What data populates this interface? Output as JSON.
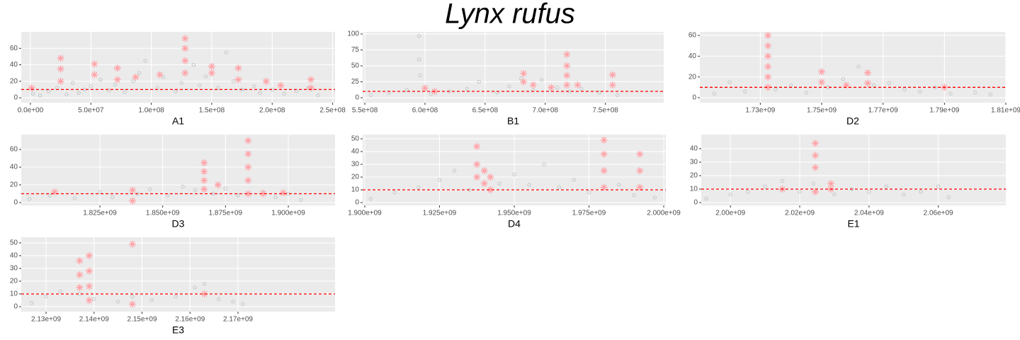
{
  "title": "Lynx rufus",
  "chart_data": [
    {
      "type": "scatter",
      "xlabel": "A1",
      "xlim": [
        -7600000,
        252000000
      ],
      "ylim": [
        -6,
        80
      ],
      "xticks": [
        {
          "value": 0,
          "label": "0.0e+00"
        },
        {
          "value": 50000000,
          "label": "5.0e+07"
        },
        {
          "value": 100000000,
          "label": "1.0e+08"
        },
        {
          "value": 150000000,
          "label": "1.5e+08"
        },
        {
          "value": 200000000,
          "label": "2.0e+08"
        },
        {
          "value": 250000000,
          "label": "2.5e+08"
        }
      ],
      "yticks": [
        0,
        20,
        40,
        60
      ],
      "hline": 10,
      "hline_color": "#ff0000",
      "grid": true,
      "series": [
        {
          "color": "#c3c8c8",
          "marker": "circle",
          "x": [
            2000000.0,
            8000000.0,
            15000000.0,
            22000000.0,
            30000000.0,
            35000000.0,
            40000000.0,
            45000000.0,
            50000000.0,
            58000000.0,
            65000000.0,
            70000000.0,
            78000000.0,
            85000000.0,
            90000000.0,
            95000000.0,
            105000000.0,
            110000000.0,
            120000000.0,
            125000000.0,
            135000000.0,
            140000000.0,
            145000000.0,
            155000000.0,
            162000000.0,
            168000000.0,
            175000000.0,
            185000000.0,
            190000000.0,
            200000000.0,
            210000000.0,
            220000000.0,
            230000000.0,
            238000000.0
          ],
          "values": [
            5,
            3,
            8,
            12,
            4,
            18,
            6,
            10,
            14,
            22,
            9,
            16,
            7,
            20,
            30,
            45,
            12,
            25,
            8,
            18,
            40,
            15,
            26,
            12,
            55,
            20,
            10,
            14,
            6,
            10,
            5,
            8,
            12,
            3
          ]
        },
        {
          "color": "#ffa3a8",
          "marker": "asterisk",
          "x": [
            1000000.0,
            25000000.0,
            25000000.0,
            25000000.0,
            53000000.0,
            53000000.0,
            72000000.0,
            72000000.0,
            87000000.0,
            107000000.0,
            128000000.0,
            128000000.0,
            128000000.0,
            128000000.0,
            150000000.0,
            150000000.0,
            172000000.0,
            172000000.0,
            195000000.0,
            207000000.0,
            232000000.0,
            232000000.0
          ],
          "values": [
            12,
            48,
            35,
            20,
            41,
            28,
            36,
            22,
            25,
            28,
            72,
            60,
            45,
            30,
            38,
            30,
            36,
            22,
            20,
            15,
            22,
            12
          ]
        }
      ]
    },
    {
      "type": "scatter",
      "xlabel": "B1",
      "xlim": [
        548200000,
        798500000
      ],
      "ylim": [
        -7.8,
        103.3
      ],
      "xticks": [
        {
          "value": 550000000,
          "label": "5.5e+08"
        },
        {
          "value": 600000000,
          "label": "6.0e+08"
        },
        {
          "value": 650000000,
          "label": "6.5e+08"
        },
        {
          "value": 700000000,
          "label": "7.0e+08"
        },
        {
          "value": 750000000,
          "label": "7.5e+08"
        }
      ],
      "yticks": [
        0,
        25,
        50,
        75,
        100
      ],
      "hline": 10,
      "hline_color": "#ff0000",
      "grid": true,
      "series": [
        {
          "color": "#c3c8c8",
          "marker": "circle",
          "x": [
            555000000.0,
            570000000.0,
            585000000.0,
            595000000.0,
            595000000.0,
            596000000.0,
            605000000.0,
            620000000.0,
            635000000.0,
            645000000.0,
            660000000.0,
            670000000.0,
            680000000.0,
            690000000.0,
            697000000.0,
            710000000.0,
            720000000.0,
            730000000.0,
            745000000.0,
            760000000.0
          ],
          "values": [
            4,
            8,
            12,
            97,
            60,
            35,
            6,
            10,
            14,
            25,
            8,
            18,
            30,
            12,
            28,
            16,
            10,
            14,
            8,
            4
          ]
        },
        {
          "color": "#ffa3a8",
          "marker": "asterisk",
          "x": [
            600000000.0,
            608000000.0,
            682000000.0,
            682000000.0,
            690000000.0,
            705000000.0,
            718000000.0,
            718000000.0,
            718000000.0,
            718000000.0,
            727000000.0,
            756000000.0,
            756000000.0
          ],
          "values": [
            15,
            10,
            38,
            25,
            20,
            16,
            68,
            50,
            35,
            20,
            20,
            36,
            20
          ]
        }
      ]
    },
    {
      "type": "scatter",
      "xlabel": "D2",
      "xlim": [
        1710300000,
        1810000000
      ],
      "ylim": [
        -4.8,
        63.4
      ],
      "xticks": [
        {
          "value": 1730000000,
          "label": "1.73e+09"
        },
        {
          "value": 1750000000,
          "label": "1.75e+09"
        },
        {
          "value": 1770000000,
          "label": "1.77e+09"
        },
        {
          "value": 1790000000,
          "label": "1.79e+09"
        },
        {
          "value": 1810000000,
          "label": "1.81e+09"
        }
      ],
      "yticks": [
        0,
        20,
        40,
        60
      ],
      "hline": 10,
      "hline_color": "#ff0000",
      "grid": true,
      "series": [
        {
          "color": "#c3c8c8",
          "marker": "circle",
          "x": [
            1715000000.0,
            1720000000.0,
            1725000000.0,
            1735000000.0,
            1740000000.0,
            1745000000.0,
            1752000000.0,
            1757000000.0,
            1762000000.0,
            1767000000.0,
            1772000000.0,
            1777000000.0,
            1782000000.0,
            1787000000.0,
            1792000000.0,
            1800000000.0,
            1805000000.0
          ],
          "values": [
            4,
            15,
            6,
            8,
            12,
            5,
            10,
            18,
            30,
            12,
            14,
            8,
            6,
            10,
            4,
            5,
            3
          ]
        },
        {
          "color": "#ffa3a8",
          "marker": "asterisk",
          "x": [
            1732500000.0,
            1732500000.0,
            1732500000.0,
            1732500000.0,
            1732500000.0,
            1732500000.0,
            1750000000.0,
            1750000000.0,
            1758000000.0,
            1765000000.0,
            1765000000.0,
            1790000000.0
          ],
          "values": [
            60,
            50,
            40,
            30,
            20,
            10,
            25,
            15,
            12,
            24,
            14,
            10
          ]
        }
      ]
    },
    {
      "type": "scatter",
      "xlabel": "D3",
      "xlim": [
        1793700000,
        1918600000
      ],
      "ylim": [
        -3.2,
        76.8
      ],
      "xticks": [
        {
          "value": 1825000000,
          "label": "1.825e+09"
        },
        {
          "value": 1850000000,
          "label": "1.850e+09"
        },
        {
          "value": 1875000000,
          "label": "1.875e+09"
        },
        {
          "value": 1900000000,
          "label": "1.900e+09"
        }
      ],
      "yticks": [
        0,
        20,
        40,
        60
      ],
      "hline": 10,
      "hline_color": "#ff0000",
      "grid": true,
      "series": [
        {
          "color": "#c3c8c8",
          "marker": "circle",
          "x": [
            1797000000.0,
            1805000000.0,
            1815000000.0,
            1825000000.0,
            1830000000.0,
            1840000000.0,
            1845000000.0,
            1852000000.0,
            1858000000.0,
            1863000000.0,
            1870000000.0,
            1875000000.0,
            1880000000.0,
            1890000000.0,
            1895000000.0,
            1900000000.0,
            1905000000.0
          ],
          "values": [
            4,
            8,
            5,
            12,
            6,
            10,
            15,
            8,
            18,
            14,
            10,
            16,
            8,
            12,
            6,
            10,
            3
          ]
        },
        {
          "color": "#ffa3a8",
          "marker": "asterisk",
          "x": [
            1807000000.0,
            1838000000.0,
            1838000000.0,
            1866500000.0,
            1866500000.0,
            1866500000.0,
            1866500000.0,
            1872000000.0,
            1884000000.0,
            1884000000.0,
            1884000000.0,
            1884000000.0,
            1884000000.0,
            1890000000.0,
            1898000000.0
          ],
          "values": [
            12,
            14,
            2,
            45,
            35,
            25,
            15,
            20,
            70,
            55,
            40,
            25,
            10,
            10,
            11
          ]
        }
      ]
    },
    {
      "type": "scatter",
      "xlabel": "D4",
      "xlim": [
        1899300000,
        2000700000
      ],
      "ylim": [
        -2.2,
        53.3
      ],
      "xticks": [
        {
          "value": 1900000000,
          "label": "1.900e+09"
        },
        {
          "value": 1925000000,
          "label": "1.925e+09"
        },
        {
          "value": 1950000000,
          "label": "1.950e+09"
        },
        {
          "value": 1975000000,
          "label": "1.975e+09"
        },
        {
          "value": 2000000000,
          "label": "2.000e+09"
        }
      ],
      "yticks": [
        0,
        10,
        20,
        30,
        40,
        50
      ],
      "hline": 10,
      "hline_color": "#ff0000",
      "grid": true,
      "series": [
        {
          "color": "#c3c8c8",
          "marker": "circle",
          "x": [
            1902000000.0,
            1910000000.0,
            1918000000.0,
            1925000000.0,
            1930000000.0,
            1935000000.0,
            1945000000.0,
            1950000000.0,
            1955000000.0,
            1960000000.0,
            1965000000.0,
            1970000000.0,
            1975000000.0,
            1985000000.0,
            1990000000.0,
            1997000000.0
          ],
          "values": [
            3,
            8,
            12,
            18,
            25,
            10,
            15,
            22,
            14,
            30,
            12,
            18,
            8,
            14,
            6,
            4
          ]
        },
        {
          "color": "#ffa3a8",
          "marker": "asterisk",
          "x": [
            1937500000.0,
            1937500000.0,
            1937500000.0,
            1940000000.0,
            1940000000.0,
            1942000000.0,
            1942000000.0,
            1980000000.0,
            1980000000.0,
            1980000000.0,
            1980000000.0,
            1992000000.0,
            1992000000.0,
            1992000000.0
          ],
          "values": [
            44,
            30,
            20,
            25,
            15,
            20,
            10,
            49,
            38,
            25,
            12,
            38,
            25,
            12
          ]
        }
      ]
    },
    {
      "type": "scatter",
      "xlabel": "E1",
      "xlim": [
        1991570000,
        2079500000
      ],
      "ylim": [
        -2.1,
        50.5
      ],
      "xticks": [
        {
          "value": 2000000000,
          "label": "2.00e+09"
        },
        {
          "value": 2020000000,
          "label": "2.02e+09"
        },
        {
          "value": 2040000000,
          "label": "2.04e+09"
        },
        {
          "value": 2060000000,
          "label": "2.06e+09"
        }
      ],
      "yticks": [
        0,
        10,
        20,
        30,
        40
      ],
      "hline": 10,
      "hline_color": "#ff0000",
      "grid": true,
      "series": [
        {
          "color": "#c3c8c8",
          "marker": "circle",
          "x": [
            1993000000.0,
            2000000000.0,
            2005000000.0,
            2010000000.0,
            2015000000.0,
            2020000000.0,
            2024000000.0,
            2030000000.0,
            2035000000.0,
            2040000000.0,
            2045000000.0,
            2050000000.0,
            2055000000.0,
            2060000000.0,
            2063000000.0
          ],
          "values": [
            3,
            6,
            8,
            12,
            16,
            8,
            14,
            6,
            10,
            8,
            12,
            6,
            8,
            12,
            4
          ]
        },
        {
          "color": "#ffa3a8",
          "marker": "asterisk",
          "x": [
            2015000000.0,
            2024500000.0,
            2024500000.0,
            2024500000.0,
            2024500000.0,
            2029000000.0,
            2029000000.0
          ],
          "values": [
            10,
            44,
            35,
            26,
            8,
            14,
            10
          ]
        }
      ]
    },
    {
      "type": "scatter",
      "xlabel": "E3",
      "xlim": [
        2124830000,
        2190220000
      ],
      "ylim": [
        -3.9,
        54.4
      ],
      "xticks": [
        {
          "value": 2130000000,
          "label": "2.13e+09"
        },
        {
          "value": 2140000000,
          "label": "2.14e+09"
        },
        {
          "value": 2150000000,
          "label": "2.15e+09"
        },
        {
          "value": 2160000000,
          "label": "2.16e+09"
        },
        {
          "value": 2170000000,
          "label": "2.17e+09"
        }
      ],
      "yticks": [
        0,
        10,
        20,
        30,
        40,
        50
      ],
      "hline": 10,
      "hline_color": "#ff0000",
      "grid": true,
      "series": [
        {
          "color": "#c3c8c8",
          "marker": "circle",
          "x": [
            2127000000.0,
            2130000000.0,
            2133000000.0,
            2137000000.0,
            2140000000.0,
            2145000000.0,
            2148000000.0,
            2152000000.0,
            2157000000.0,
            2161000000.0,
            2163000000.0,
            2166000000.0,
            2169000000.0,
            2171000000.0
          ],
          "values": [
            3,
            8,
            12,
            10,
            6,
            4,
            8,
            5,
            8,
            15,
            18,
            6,
            4,
            2
          ]
        },
        {
          "color": "#ffa3a8",
          "marker": "asterisk",
          "x": [
            2137000000.0,
            2137000000.0,
            2137000000.0,
            2139000000.0,
            2139000000.0,
            2139000000.0,
            2139000000.0,
            2148000000.0,
            2148000000.0,
            2163000000.0
          ],
          "values": [
            36,
            25,
            15,
            40,
            28,
            16,
            5,
            49,
            2,
            10
          ]
        }
      ]
    }
  ]
}
